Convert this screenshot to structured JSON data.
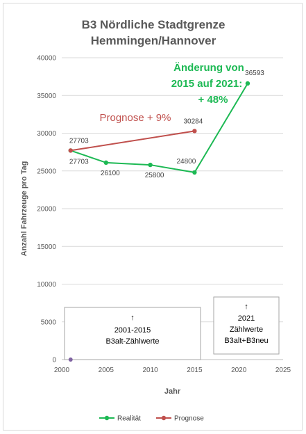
{
  "chart_data": {
    "type": "line",
    "title": [
      "B3 Nördliche Stadtgrenze",
      "Hemmingen/Hannover"
    ],
    "xlabel": "Jahr",
    "ylabel": "Anzahl Fahrzeuge pro Tag",
    "xlim": [
      2000,
      2025
    ],
    "ylim": [
      0,
      40000
    ],
    "x_ticks": [
      "2000",
      "2005",
      "2010",
      "2015",
      "2020",
      "2025"
    ],
    "y_ticks": [
      "0",
      "5000",
      "10000",
      "15000",
      "20000",
      "25000",
      "30000",
      "35000",
      "40000"
    ],
    "grid": "horizontal",
    "legend_position": "bottom",
    "series": [
      {
        "name": "Realität",
        "color": "#1db954",
        "x": [
          2001,
          2005,
          2010,
          2015,
          2021
        ],
        "values": [
          27703,
          26100,
          25800,
          24800,
          36593
        ],
        "labels": [
          "27703",
          "26100",
          "25800",
          "24800",
          "36593"
        ]
      },
      {
        "name": "Prognose",
        "color": "#c0504d",
        "x": [
          2001,
          2015
        ],
        "values": [
          27703,
          30284
        ],
        "labels": [
          "27703",
          "30284"
        ]
      }
    ],
    "extra_point": {
      "x": 2001,
      "y": 0,
      "color": "#8064a2"
    },
    "annotations": {
      "green": [
        "Änderung von",
        "2015 auf 2021:",
        "+ 48%"
      ],
      "red": "Prognose  + 9%"
    },
    "boxes": [
      {
        "arrow": "↑",
        "lines": [
          "2001-2015",
          "B3alt-Zählwerte"
        ]
      },
      {
        "arrow": "↑",
        "lines": [
          "2021",
          "Zählwerte",
          "B3alt+B3neu"
        ]
      }
    ]
  }
}
